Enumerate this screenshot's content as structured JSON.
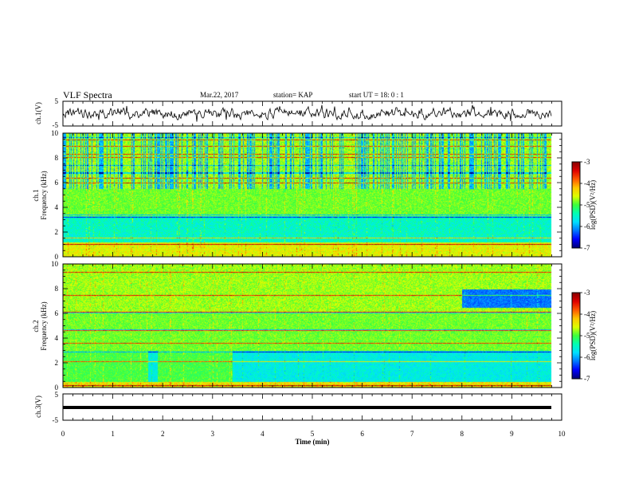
{
  "header": {
    "title": "VLF Spectra",
    "date": "Mar.22, 2017",
    "station": "station= KAP",
    "start": "start  UT =   18: 0  : 1"
  },
  "chart_data": [
    {
      "id": "ch1-waveform",
      "type": "line",
      "ylabel": "ch.1(V)",
      "ylim": [
        -5,
        5
      ],
      "ytick_labels": [
        "-5",
        "5"
      ],
      "xlim": [
        0,
        10
      ],
      "data_end_min": 9.8,
      "series": [
        {
          "color": "#000000",
          "values_range": [
            -3.5,
            3.5
          ]
        }
      ]
    },
    {
      "id": "ch1-spectrogram",
      "type": "heatmap",
      "ylabel_line1": "ch.1",
      "ylabel_line2": "Frequency  (kHz)",
      "ylim": [
        0,
        10
      ],
      "ytick_labels": [
        "0",
        "2",
        "4",
        "6",
        "8",
        "10"
      ],
      "xlim": [
        0,
        10
      ],
      "colorbar": {
        "label": "log(PSD)(V²/Hz)",
        "range": [
          -7,
          -3
        ],
        "tick_labels": [
          "-3",
          "-4",
          "-5",
          "-6",
          "-7"
        ]
      }
    },
    {
      "id": "ch2-spectrogram",
      "type": "heatmap",
      "ylabel_line1": "ch.2",
      "ylabel_line2": "Frequency  (kHz)",
      "ylim": [
        0,
        10
      ],
      "ytick_labels": [
        "0",
        "2",
        "4",
        "6",
        "8",
        "10"
      ],
      "xlim": [
        0,
        10
      ],
      "colorbar": {
        "label": "log(PSD)(V²/Hz)",
        "range": [
          -7,
          -3
        ],
        "tick_labels": [
          "-3",
          "-4",
          "-5",
          "-6",
          "-7"
        ]
      }
    },
    {
      "id": "ch3-waveform",
      "type": "line",
      "ylabel": "ch.3(V)",
      "ylim": [
        -5,
        5
      ],
      "ytick_labels": [
        "-5",
        "5"
      ],
      "xlim": [
        0,
        10
      ],
      "series": [
        {
          "color": "#000000",
          "constant_value": 0
        }
      ]
    }
  ],
  "xaxis": {
    "label": "Time  (min)",
    "tick_labels": [
      "0",
      "1",
      "2",
      "3",
      "4",
      "5",
      "6",
      "7",
      "8",
      "9",
      "10"
    ]
  },
  "colors": {
    "colormap": [
      "#00007a",
      "#0000ff",
      "#0078ff",
      "#00e0ff",
      "#00ffb4",
      "#3cff3c",
      "#dcff00",
      "#ffc800",
      "#ff5a00",
      "#e00000",
      "#8a0000"
    ]
  }
}
